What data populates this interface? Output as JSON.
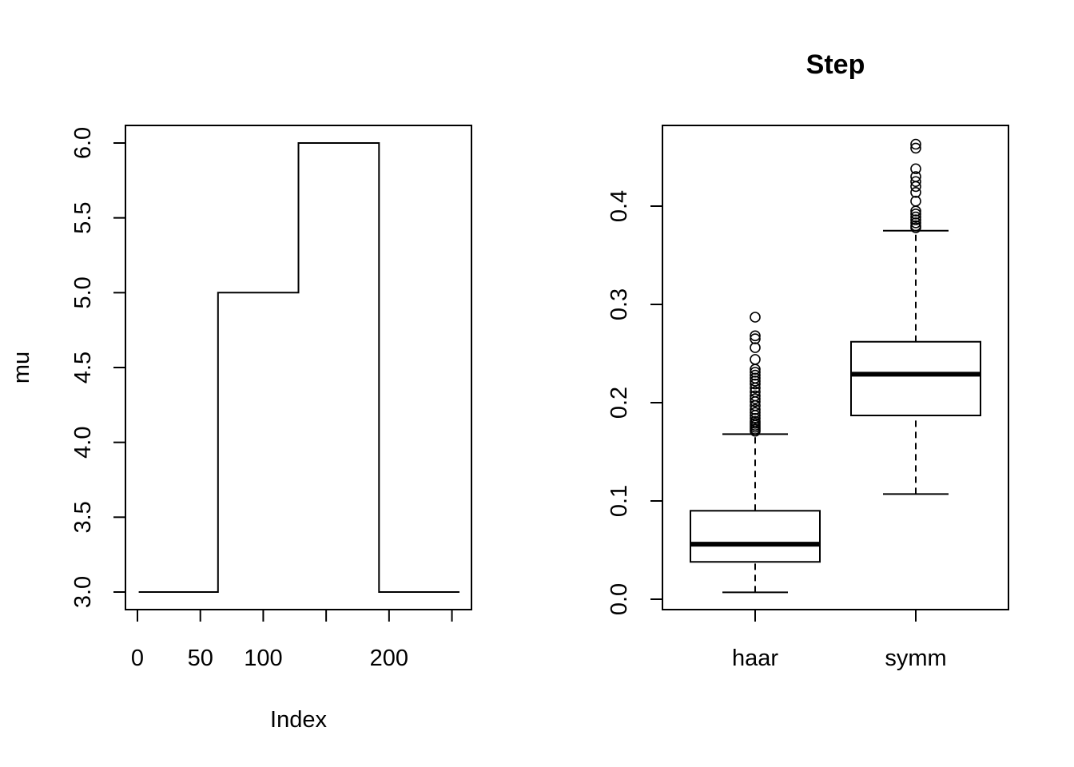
{
  "chart_data": [
    {
      "type": "line",
      "title": "",
      "xlabel": "Index",
      "ylabel": "mu",
      "xlim": [
        0,
        256
      ],
      "ylim": [
        3.0,
        6.0
      ],
      "x_ticks": [
        0,
        50,
        100,
        150,
        200,
        250
      ],
      "x_tick_labels": [
        "0",
        "50",
        "100",
        "",
        "200",
        ""
      ],
      "y_ticks": [
        3.0,
        3.5,
        4.0,
        4.5,
        5.0,
        5.5,
        6.0
      ],
      "y_tick_labels": [
        "3.0",
        "3.5",
        "4.0",
        "4.5",
        "5.0",
        "5.5",
        "6.0"
      ],
      "series": [
        {
          "x": [
            1,
            64,
            64,
            128,
            128,
            192,
            192,
            256
          ],
          "y": [
            3.0,
            3.0,
            5.0,
            5.0,
            6.0,
            6.0,
            3.0,
            3.0
          ]
        }
      ],
      "grid": false
    },
    {
      "type": "box",
      "title": "Step",
      "xlabel": "",
      "ylabel": "",
      "ylim": [
        0.0,
        0.47
      ],
      "y_ticks": [
        0.0,
        0.1,
        0.2,
        0.3,
        0.4
      ],
      "y_tick_labels": [
        "0.0",
        "0.1",
        "0.2",
        "0.3",
        "0.4"
      ],
      "categories": [
        "haar",
        "symm"
      ],
      "boxes": [
        {
          "label": "haar",
          "whisker_low": 0.007,
          "q1": 0.038,
          "median": 0.056,
          "q3": 0.09,
          "whisker_high": 0.168,
          "outliers": [
            0.171,
            0.173,
            0.175,
            0.177,
            0.179,
            0.181,
            0.184,
            0.187,
            0.19,
            0.193,
            0.197,
            0.201,
            0.204,
            0.207,
            0.211,
            0.215,
            0.219,
            0.222,
            0.225,
            0.228,
            0.231,
            0.234,
            0.244,
            0.256,
            0.265,
            0.268,
            0.287
          ]
        },
        {
          "label": "symm",
          "whisker_low": 0.107,
          "q1": 0.187,
          "median": 0.229,
          "q3": 0.262,
          "whisker_high": 0.375,
          "outliers": [
            0.378,
            0.38,
            0.383,
            0.386,
            0.389,
            0.392,
            0.395,
            0.405,
            0.414,
            0.42,
            0.425,
            0.43,
            0.438,
            0.459,
            0.463
          ]
        }
      ],
      "grid": false
    }
  ]
}
